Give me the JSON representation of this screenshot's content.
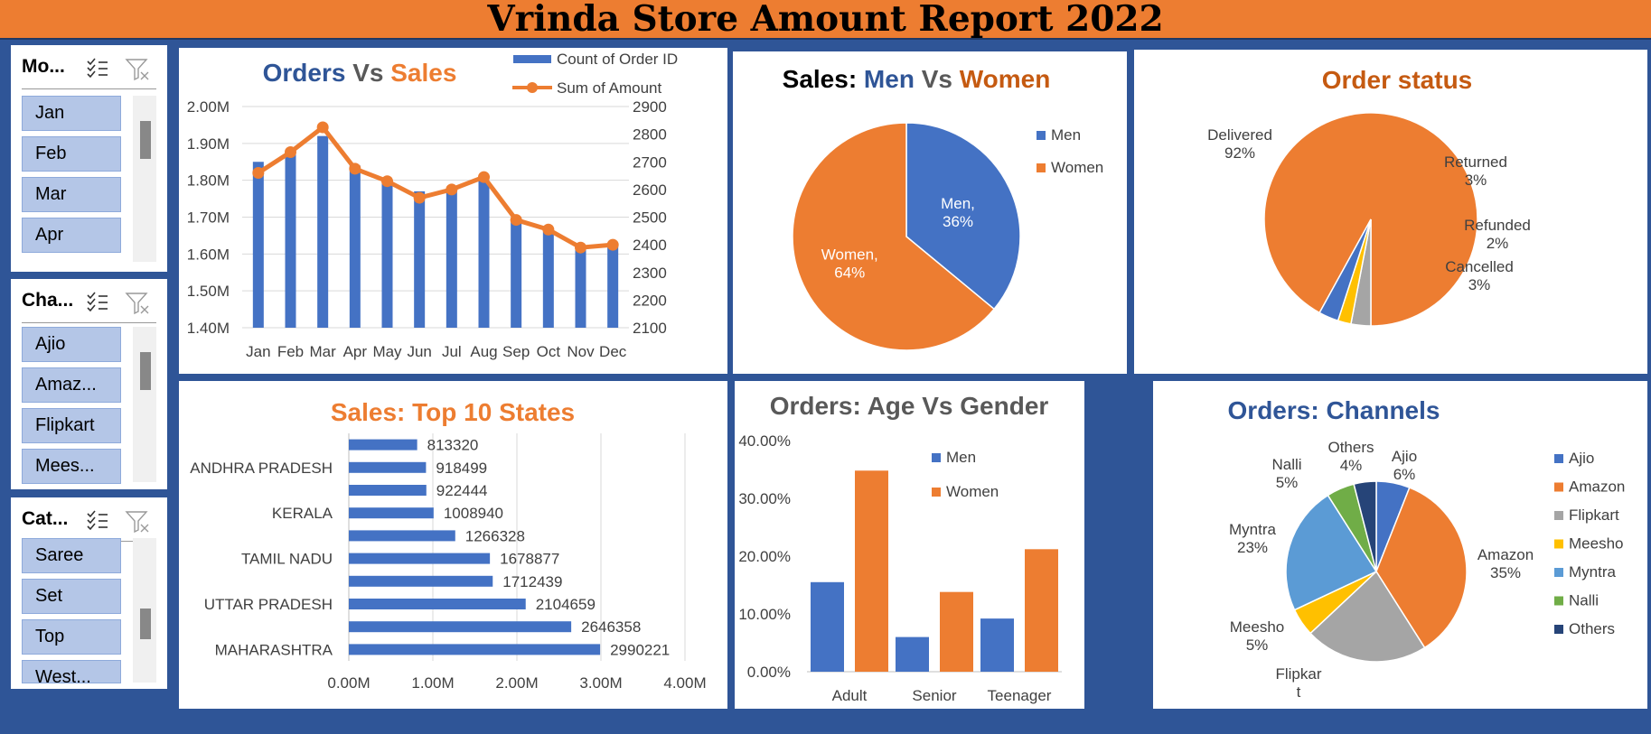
{
  "report_title": "Vrinda Store Amount Report 2022",
  "slicers": [
    {
      "header": "Mo...",
      "items": [
        "Jan",
        "Feb",
        "Mar",
        "Apr"
      ],
      "icons": [
        "multi-select-icon",
        "clear-filter-icon"
      ]
    },
    {
      "header": "Cha...",
      "items": [
        "Ajio",
        "Amaz...",
        "Flipkart",
        "Mees..."
      ],
      "icons": [
        "multi-select-icon",
        "clear-filter-icon"
      ]
    },
    {
      "header": "Cat...",
      "items": [
        "Saree",
        "Set",
        "Top",
        "West..."
      ],
      "icons": [
        "multi-select-icon",
        "clear-filter-icon"
      ]
    }
  ],
  "charts": {
    "orders_sales": {
      "type": "bar",
      "title_parts": [
        "Orders",
        " Vs ",
        "Sales"
      ],
      "title_colors": [
        "#2f5597",
        "#595959",
        "#ed7d31"
      ],
      "legend": [
        "Count of Order ID",
        "Sum of Amount"
      ],
      "categories": [
        "Jan",
        "Feb",
        "Mar",
        "Apr",
        "May",
        "Jun",
        "Jul",
        "Aug",
        "Sep",
        "Oct",
        "Nov",
        "Dec"
      ],
      "left_axis": {
        "min": 1.4,
        "max": 2.0,
        "ticks": [
          "1.40M",
          "1.50M",
          "1.60M",
          "1.70M",
          "1.80M",
          "1.90M",
          "2.00M"
        ]
      },
      "right_axis": {
        "min": 2100,
        "max": 2900,
        "ticks": [
          "2100",
          "2200",
          "2300",
          "2400",
          "2500",
          "2600",
          "2700",
          "2800",
          "2900"
        ]
      },
      "bar_values_m": [
        1.85,
        1.88,
        1.92,
        1.84,
        1.8,
        1.77,
        1.78,
        1.8,
        1.69,
        1.66,
        1.62,
        1.63
      ],
      "line_values": [
        2660,
        2735,
        2825,
        2675,
        2630,
        2570,
        2600,
        2645,
        2490,
        2455,
        2390,
        2400
      ],
      "bar_color": "#4472c4",
      "line_color": "#ed7d31"
    },
    "men_women": {
      "type": "pie",
      "title_parts": [
        "Sales: ",
        "Men",
        " Vs ",
        "Women"
      ],
      "title_colors": [
        "#000000",
        "#2f5597",
        "#595959",
        "#c55a11"
      ],
      "slices": [
        {
          "name": "Men",
          "value": 36,
          "label_name": "Men,",
          "label_pct": "36%",
          "color": "#4472c4"
        },
        {
          "name": "Women",
          "value": 64,
          "label_name": "Women,",
          "label_pct": "64%",
          "color": "#ed7d31"
        }
      ],
      "legend": [
        "Men",
        "Women"
      ]
    },
    "order_status": {
      "type": "pie",
      "title": "Order status",
      "title_color": "#c55a11",
      "slices": [
        {
          "name": "Delivered",
          "value": 92,
          "pct": "92%",
          "color": "#ed7d31"
        },
        {
          "name": "Returned",
          "value": 3,
          "pct": "3%",
          "color": "#a5a5a5"
        },
        {
          "name": "Refunded",
          "value": 2,
          "pct": "2%",
          "color": "#ffc000"
        },
        {
          "name": "Cancelled",
          "value": 3,
          "pct": "3%",
          "color": "#4472c4"
        }
      ]
    },
    "top_states": {
      "type": "bar",
      "title": "Sales: Top 10 States",
      "title_color": "#ed7d31",
      "values": [
        813320,
        918499,
        922444,
        1008940,
        1266328,
        1678877,
        1712439,
        2104659,
        2646358,
        2990221
      ],
      "value_labels": [
        "813320",
        "918499",
        "922444",
        "1008940",
        "1266328",
        "1678877",
        "1712439",
        "2104659",
        "2646358",
        "2990221"
      ],
      "y_labels": [
        "ANDHRA PRADESH",
        "KERALA",
        "TAMIL NADU",
        "UTTAR PRADESH",
        "MAHARASHTRA"
      ],
      "y_label_rows": [
        1,
        3,
        5,
        7,
        9
      ],
      "x_axis": {
        "min": 0,
        "max": 4000000,
        "ticks": [
          "0.00M",
          "1.00M",
          "2.00M",
          "3.00M",
          "4.00M"
        ]
      },
      "bar_color": "#4472c4"
    },
    "age_gender": {
      "type": "bar",
      "title": "Orders: Age Vs Gender",
      "title_color": "#595959",
      "categories": [
        "Adult",
        "Senior",
        "Teenager"
      ],
      "series": [
        {
          "name": "Men",
          "values": [
            15.5,
            6.0,
            9.2
          ],
          "color": "#4472c4"
        },
        {
          "name": "Women",
          "values": [
            34.8,
            13.8,
            21.2
          ],
          "color": "#ed7d31"
        }
      ],
      "y_axis": {
        "min": 0,
        "max": 40,
        "ticks": [
          "0.00%",
          "10.00%",
          "20.00%",
          "30.00%",
          "40.00%"
        ]
      }
    },
    "channels": {
      "type": "pie",
      "title": "Orders: Channels",
      "title_color": "#2f5597",
      "slices": [
        {
          "name": "Ajio",
          "value": 6,
          "pct": "6%",
          "color": "#4472c4"
        },
        {
          "name": "Amazon",
          "value": 35,
          "pct": "35%",
          "color": "#ed7d31"
        },
        {
          "name": "Flipkart",
          "value": 22,
          "pct": "",
          "color": "#a5a5a5"
        },
        {
          "name": "Meesho",
          "value": 5,
          "pct": "5%",
          "color": "#ffc000"
        },
        {
          "name": "Myntra",
          "value": 23,
          "pct": "23%",
          "color": "#5b9bd5"
        },
        {
          "name": "Nalli",
          "value": 5,
          "pct": "5%",
          "color": "#70ad47"
        },
        {
          "name": "Others",
          "value": 4,
          "pct": "4%",
          "color": "#264478"
        }
      ],
      "flipkart_label_lines": [
        "Flipkar",
        "t"
      ],
      "legend": [
        "Ajio",
        "Amazon",
        "Flipkart",
        "Meesho",
        "Myntra",
        "Nalli",
        "Others"
      ]
    }
  }
}
